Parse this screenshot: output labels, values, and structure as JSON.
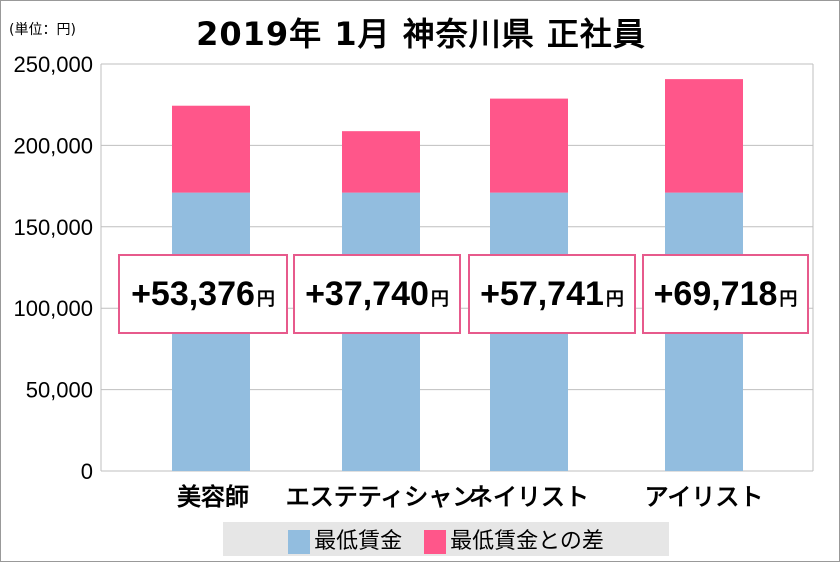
{
  "chart_data": {
    "type": "bar",
    "stacked": true,
    "title": "2019年 1月 神奈川県 正社員",
    "unit_label": "(単位：円)",
    "categories": [
      "美容師",
      "エステティシャン",
      "ネイリスト",
      "アイリスト"
    ],
    "series": [
      {
        "name": "最低賃金",
        "color": "#92bddf",
        "values": [
          171000,
          171000,
          171000,
          171000
        ]
      },
      {
        "name": "最低賃金との差",
        "color": "#ff568a",
        "values": [
          53376,
          37740,
          57741,
          69718
        ]
      }
    ],
    "annotations": [
      "+53,376",
      "+37,740",
      "+57,741",
      "+69,718"
    ],
    "annotation_suffix": "円",
    "ylim": [
      0,
      250000
    ],
    "yticks": [
      0,
      50000,
      100000,
      150000,
      200000,
      250000
    ],
    "ytick_labels": [
      "0",
      "50,000",
      "100,000",
      "150,000",
      "200,000",
      "250,000"
    ],
    "grid": true,
    "legend_position": "bottom"
  }
}
